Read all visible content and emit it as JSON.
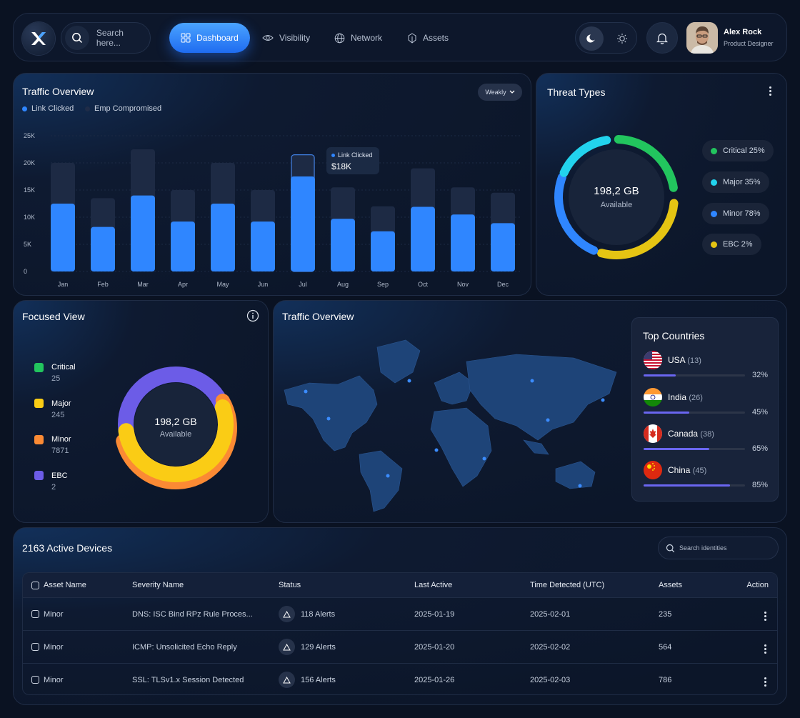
{
  "nav": {
    "search_placeholder": "Search here...",
    "items": [
      {
        "label": "Dashboard",
        "icon": "grid-icon",
        "active": true
      },
      {
        "label": "Visibility",
        "icon": "eye-icon"
      },
      {
        "label": "Network",
        "icon": "globe-icon"
      },
      {
        "label": "Assets",
        "icon": "assets-icon"
      }
    ],
    "user": {
      "name": "Alex Rock",
      "role": "Product Designer"
    }
  },
  "traffic": {
    "title": "Traffic Overview",
    "legend": [
      "Link Clicked",
      "Emp Compromised"
    ],
    "period": "Weakly",
    "tooltip": {
      "label": "Link Clicked",
      "value": "$18K"
    }
  },
  "chart_data": [
    {
      "type": "bar",
      "title": "Traffic Overview",
      "categories": [
        "Jan",
        "Feb",
        "Mar",
        "Apr",
        "May",
        "Jun",
        "Jul",
        "Aug",
        "Sep",
        "Oct",
        "Nov",
        "Dec"
      ],
      "series": [
        {
          "name": "Link Clicked",
          "values": [
            12500,
            8200,
            14000,
            9200,
            12500,
            9200,
            17500,
            9700,
            7400,
            11900,
            10500,
            8900
          ],
          "color": "#2f86ff"
        },
        {
          "name": "Emp Compromised",
          "values": [
            20000,
            13500,
            22500,
            15000,
            20000,
            15000,
            21500,
            15500,
            12000,
            19000,
            15500,
            14500
          ],
          "color": "#1d2a44"
        }
      ],
      "ylim": [
        0,
        25000
      ],
      "yticks": [
        "0",
        "5K",
        "10K",
        "15K",
        "20K",
        "25K"
      ],
      "highlight": "Jul"
    },
    {
      "type": "pie",
      "title": "Threat Types",
      "center": {
        "value": "198,2 GB",
        "label": "Available"
      },
      "slices": [
        {
          "label": "Critical 25%",
          "color": "#22c55e"
        },
        {
          "label": "Major 35%",
          "color": "#22d3ee"
        },
        {
          "label": "Minor 78%",
          "color": "#2f86ff"
        },
        {
          "label": "EBC 2%",
          "color": "#e5c413"
        }
      ]
    },
    {
      "type": "pie",
      "title": "Focused View",
      "center": {
        "value": "198,2 GB",
        "label": "Available"
      },
      "slices": [
        {
          "label": "Critical",
          "value": 25,
          "color": "#22c55e"
        },
        {
          "label": "Major",
          "value": 245,
          "color": "#facc15"
        },
        {
          "label": "Minor",
          "value": 7871,
          "color": "#fb8a34"
        },
        {
          "label": "EBC",
          "value": 2,
          "color": "#6c5ce7"
        }
      ]
    }
  ],
  "threat": {
    "title": "Threat Types",
    "center_value": "198,2 GB",
    "center_label": "Available",
    "items": [
      {
        "label": "Critical 25%",
        "color": "#22c55e"
      },
      {
        "label": "Major 35%",
        "color": "#22d3ee"
      },
      {
        "label": "Minor 78%",
        "color": "#2f86ff"
      },
      {
        "label": "EBC 2%",
        "color": "#e5c413"
      }
    ]
  },
  "focused": {
    "title": "Focused View",
    "center_value": "198,2 GB",
    "center_label": "Available",
    "items": [
      {
        "label": "Critical",
        "value": "25",
        "color": "#22c55e"
      },
      {
        "label": "Major",
        "value": "245",
        "color": "#facc15"
      },
      {
        "label": "Minor",
        "value": "7871",
        "color": "#fb8a34"
      },
      {
        "label": "EBC",
        "value": "2",
        "color": "#6c5ce7"
      }
    ]
  },
  "map": {
    "title": "Traffic Overview",
    "top_title": "Top Countries",
    "countries": [
      {
        "name": "USA",
        "count": "(13)",
        "percent": "32%",
        "fraction": 0.32
      },
      {
        "name": "India",
        "count": "(26)",
        "percent": "45%",
        "fraction": 0.45
      },
      {
        "name": "Canada",
        "count": "(38)",
        "percent": "65%",
        "fraction": 0.65
      },
      {
        "name": "China",
        "count": "(45)",
        "percent": "85%",
        "fraction": 0.85
      }
    ]
  },
  "devices": {
    "title": "2163 Active Devices",
    "search_placeholder": "Search identities",
    "columns": [
      "Asset Name",
      "Severity Name",
      "Status",
      "Last Active",
      "Time Detected (UTC)",
      "Assets",
      "Action"
    ],
    "rows": [
      {
        "asset": "Minor",
        "severity": "DNS: ISC Bind RPz Rule Proces...",
        "status": "118 Alerts",
        "last": "2025-01-19",
        "detected": "2025-02-01",
        "assets": "235"
      },
      {
        "asset": "Minor",
        "severity": "ICMP: Unsolicited Echo Reply",
        "status": "129 Alerts",
        "last": "2025-01-20",
        "detected": "2025-02-02",
        "assets": "564"
      },
      {
        "asset": "Minor",
        "severity": "SSL: TLSv1.x Session Detected",
        "status": "156 Alerts",
        "last": "2025-01-26",
        "detected": "2025-02-03",
        "assets": "786"
      }
    ]
  }
}
